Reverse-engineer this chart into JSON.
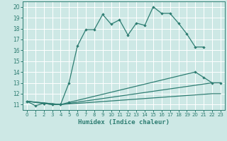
{
  "xlabel": "Humidex (Indice chaleur)",
  "xlim": [
    -0.5,
    23.5
  ],
  "ylim": [
    10.5,
    20.5
  ],
  "xticks": [
    0,
    1,
    2,
    3,
    4,
    5,
    6,
    7,
    8,
    9,
    10,
    11,
    12,
    13,
    14,
    15,
    16,
    17,
    18,
    19,
    20,
    21,
    22,
    23
  ],
  "yticks": [
    11,
    12,
    13,
    14,
    15,
    16,
    17,
    18,
    19,
    20
  ],
  "bg_color": "#cde8e5",
  "grid_color": "#ffffff",
  "line_color": "#2e7d72",
  "line1_x": [
    0,
    1,
    2,
    3,
    4,
    5,
    6,
    7,
    8,
    9,
    10,
    11,
    12,
    13,
    14,
    15,
    16,
    17,
    18,
    19,
    20,
    21
  ],
  "line1_y": [
    11.3,
    10.9,
    11.1,
    11.0,
    11.0,
    13.0,
    16.4,
    17.9,
    17.9,
    19.3,
    18.4,
    18.8,
    17.4,
    18.5,
    18.3,
    20.0,
    19.4,
    19.4,
    18.5,
    17.5,
    16.3,
    16.3
  ],
  "line2_x": [
    0,
    2,
    3,
    4,
    5,
    20,
    21,
    22,
    23
  ],
  "line2_y": [
    11.3,
    11.1,
    11.0,
    11.0,
    11.2,
    14.0,
    13.5,
    13.0,
    13.0
  ],
  "line3_x": [
    0,
    4,
    22,
    23
  ],
  "line3_y": [
    11.3,
    11.0,
    13.0,
    13.0
  ],
  "line4_x": [
    0,
    4,
    22,
    23
  ],
  "line4_y": [
    11.3,
    11.0,
    12.0,
    12.0
  ]
}
